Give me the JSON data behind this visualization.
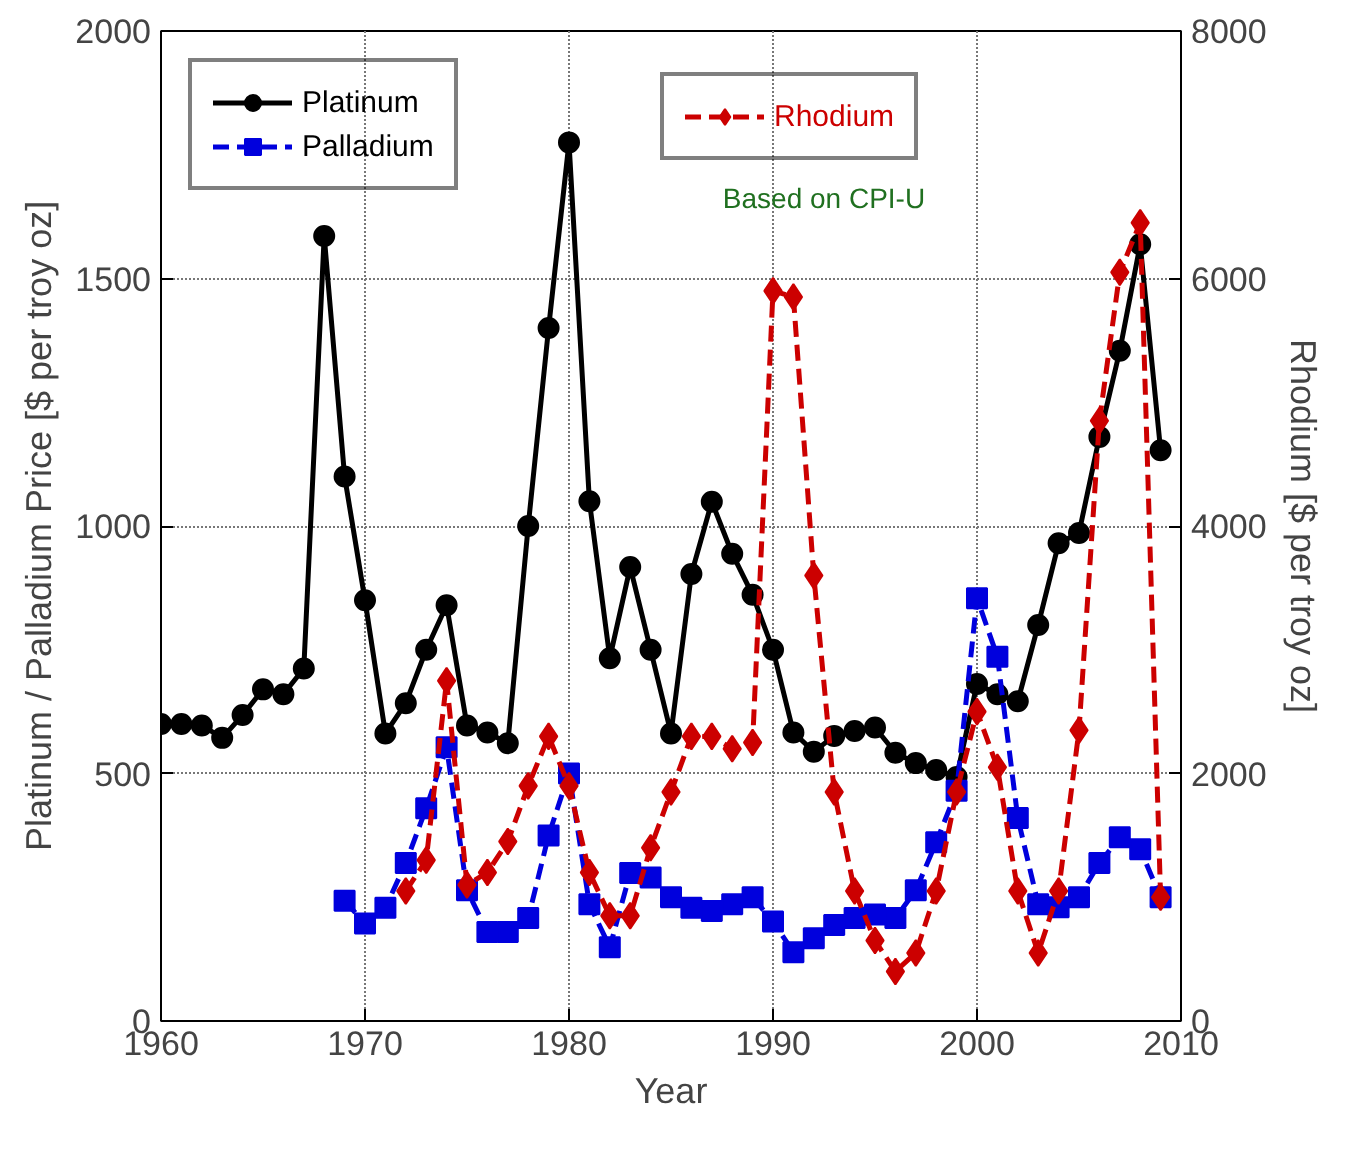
{
  "chart_data": {
    "type": "line",
    "xlabel": "Year",
    "ylabel": "Platinum / Palladium Price [$ per troy oz]",
    "y2label": "Rhodium [$ per troy oz]",
    "annotations": [
      "Based on CPI-U"
    ],
    "xlim": [
      1960,
      2010
    ],
    "xticks": [
      1960,
      1970,
      1980,
      1990,
      2000,
      2010
    ],
    "ylim": [
      0,
      2000
    ],
    "yticks": [
      0,
      500,
      1000,
      1500,
      2000
    ],
    "y2lim": [
      0,
      8000
    ],
    "y2ticks": [
      0,
      2000,
      4000,
      6000,
      8000
    ],
    "grid": true,
    "legend": "top left",
    "series": [
      {
        "name": "Platinum",
        "color": "#000000",
        "marker": "circle",
        "line_style": "solid",
        "x": [
          1960,
          1961,
          1962,
          1963,
          1964,
          1965,
          1966,
          1967,
          1968,
          1969,
          1970,
          1971,
          1972,
          1973,
          1974,
          1975,
          1976,
          1977,
          1978,
          1979,
          1980,
          1981,
          1982,
          1983,
          1984,
          1985,
          1986,
          1987,
          1988,
          1989,
          1990,
          1991,
          1992,
          1993,
          1994,
          1995,
          1996,
          1997,
          1998,
          1999,
          2000,
          2001,
          2002,
          2003,
          2004,
          2005,
          2006,
          2007,
          2008,
          2009
        ],
        "values": [
          600,
          600,
          597,
          572,
          618,
          670,
          660,
          712,
          1586,
          1100,
          850,
          581,
          642,
          750,
          840,
          597,
          583,
          561,
          1000,
          1400,
          1775,
          1050,
          733,
          917,
          750,
          581,
          903,
          1049,
          944,
          861,
          750,
          583,
          544,
          576,
          586,
          593,
          542,
          521,
          507,
          493,
          681,
          660,
          646,
          800,
          965,
          986,
          1180,
          1354,
          1569,
          1153
        ]
      },
      {
        "name": "Palladium",
        "color": "#0000dd",
        "marker": "square",
        "line_style": "dashed",
        "x": [
          1969,
          1970,
          1971,
          1972,
          1973,
          1974,
          1975,
          1976,
          1977,
          1978,
          1979,
          1980,
          1981,
          1982,
          1983,
          1984,
          1985,
          1986,
          1987,
          1988,
          1989,
          1990,
          1991,
          1992,
          1993,
          1994,
          1995,
          1996,
          1997,
          1998,
          1999,
          2000,
          2001,
          2002,
          2003,
          2004,
          2005,
          2006,
          2007,
          2008,
          2009
        ],
        "values": [
          243,
          197,
          229,
          319,
          430,
          553,
          264,
          180,
          180,
          208,
          375,
          500,
          236,
          149,
          299,
          290,
          250,
          229,
          222,
          236,
          250,
          201,
          139,
          167,
          194,
          208,
          215,
          208,
          264,
          361,
          465,
          854,
          736,
          410,
          236,
          230,
          250,
          319,
          371,
          347,
          250
        ]
      },
      {
        "name": "Rhodium",
        "color": "#cc0000",
        "marker": "diamond",
        "line_style": "dashed",
        "axis": "y2",
        "x": [
          1972,
          1973,
          1974,
          1975,
          1976,
          1977,
          1978,
          1979,
          1980,
          1981,
          1982,
          1983,
          1984,
          1985,
          1986,
          1987,
          1988,
          1989,
          1990,
          1991,
          1992,
          1993,
          1994,
          1995,
          1996,
          1997,
          1998,
          1999,
          2000,
          2001,
          2002,
          2003,
          2004,
          2005,
          2006,
          2007,
          2008,
          2009
        ],
        "values": [
          1050,
          1300,
          2750,
          1100,
          1200,
          1450,
          1900,
          2300,
          1900,
          1200,
          850,
          850,
          1400,
          1850,
          2300,
          2300,
          2200,
          2250,
          5900,
          5850,
          3600,
          1850,
          1050,
          650,
          400,
          550,
          1050,
          1850,
          2500,
          2050,
          1050,
          550,
          1050,
          2350,
          4850,
          6050,
          6450,
          1000
        ]
      }
    ]
  }
}
